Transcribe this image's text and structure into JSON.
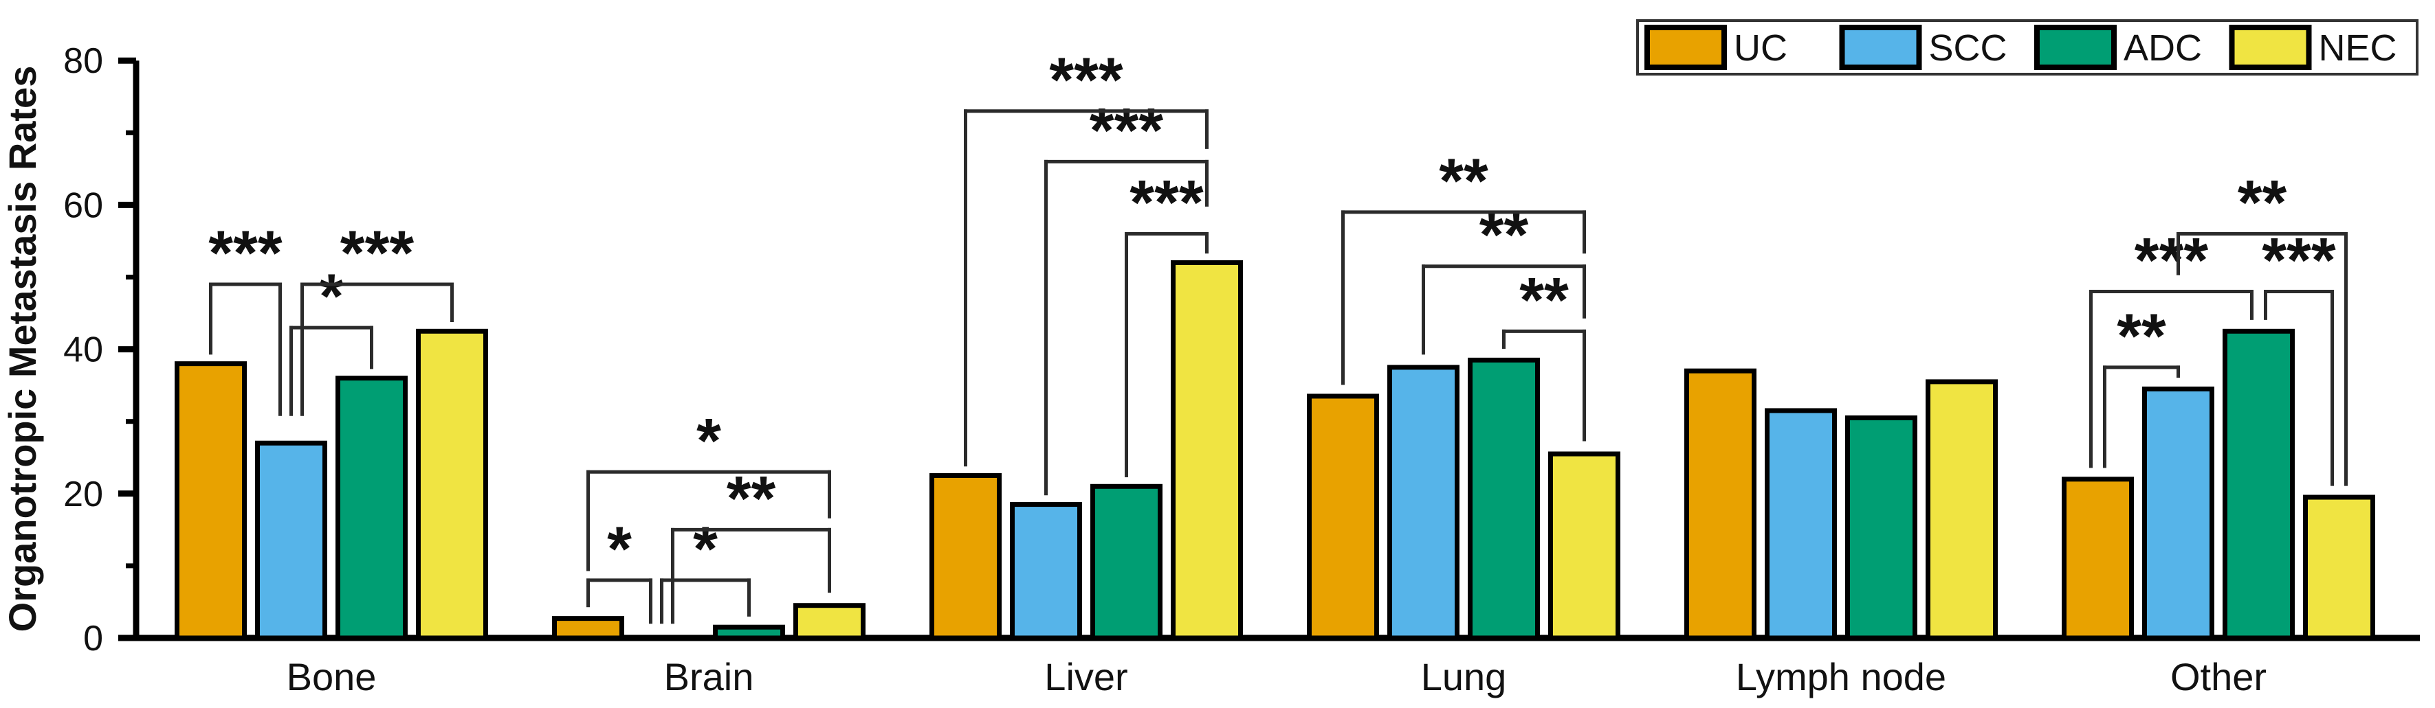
{
  "chart_data": {
    "type": "bar",
    "title": "",
    "xlabel": "",
    "ylabel": "Organotropic Metastasis Rates",
    "ylim": [
      0,
      80
    ],
    "yticks_major": [
      0,
      20,
      40,
      60,
      80
    ],
    "yticks_minor": [
      10,
      30,
      50,
      70
    ],
    "grid": false,
    "legend_position": "top-right",
    "categories": [
      "Bone",
      "Brain",
      "Liver",
      "Lung",
      "Lymph node",
      "Other"
    ],
    "series": [
      {
        "name": "UC",
        "color": "#E8A200",
        "values": [
          38,
          2.7,
          22.5,
          33.5,
          37,
          22
        ]
      },
      {
        "name": "SCC",
        "color": "#56B4E9",
        "values": [
          27,
          0,
          18.5,
          37.5,
          31.5,
          34.5
        ]
      },
      {
        "name": "ADC",
        "color": "#009E73",
        "values": [
          36,
          1.5,
          21,
          38.5,
          30.5,
          42.5
        ]
      },
      {
        "name": "NEC",
        "color": "#F0E442",
        "values": [
          42.5,
          4.5,
          52,
          25.5,
          35.5,
          19.5
        ]
      }
    ],
    "significance_brackets": [
      {
        "category": "Bone",
        "a": "UC",
        "b": "SCC",
        "stars": "***",
        "top": 49,
        "a_end": 39.5,
        "b_end": 31,
        "a_dx": 0,
        "b_dx": -16
      },
      {
        "category": "Bone",
        "a": "SCC",
        "b": "ADC",
        "stars": "*",
        "top": 43,
        "a_end": 31,
        "b_end": 37.5,
        "a_dx": 0,
        "b_dx": 0
      },
      {
        "category": "Bone",
        "a": "SCC",
        "b": "NEC",
        "stars": "***",
        "top": 49,
        "a_end": 31,
        "b_end": 44,
        "a_dx": 16,
        "b_dx": 0
      },
      {
        "category": "Brain",
        "a": "UC",
        "b": "SCC",
        "stars": "*",
        "top": 8,
        "a_end": 4.5,
        "b_end": 2.2,
        "a_dx": 0,
        "b_dx": -26
      },
      {
        "category": "Brain",
        "a": "SCC",
        "b": "ADC",
        "stars": "*",
        "top": 8,
        "a_end": 2.2,
        "b_end": 3.2,
        "a_dx": -10,
        "b_dx": 0
      },
      {
        "category": "Brain",
        "a": "SCC",
        "b": "NEC",
        "stars": "**",
        "top": 15,
        "a_end": 2.2,
        "b_end": 6.5,
        "a_dx": 6,
        "b_dx": 0
      },
      {
        "category": "Brain",
        "a": "UC",
        "b": "NEC",
        "stars": "*",
        "top": 23,
        "a_end": 9.5,
        "b_end": 16.8,
        "a_dx": 0,
        "b_dx": 0
      },
      {
        "category": "Liver",
        "a": "ADC",
        "b": "NEC",
        "stars": "***",
        "top": 56,
        "a_end": 22.5,
        "b_end": 53.5,
        "a_dx": 0,
        "b_dx": 0
      },
      {
        "category": "Liver",
        "a": "SCC",
        "b": "NEC",
        "stars": "***",
        "top": 66,
        "a_end": 20,
        "b_end": 60,
        "a_dx": 0,
        "b_dx": 0
      },
      {
        "category": "Liver",
        "a": "UC",
        "b": "NEC",
        "stars": "***",
        "top": 73,
        "a_end": 24,
        "b_end": 68,
        "a_dx": 0,
        "b_dx": 0
      },
      {
        "category": "Lung",
        "a": "ADC",
        "b": "NEC",
        "stars": "**",
        "top": 42.5,
        "a_end": 40.3,
        "b_end": 27.5,
        "a_dx": 0,
        "b_dx": 0
      },
      {
        "category": "Lung",
        "a": "SCC",
        "b": "NEC",
        "stars": "**",
        "top": 51.5,
        "a_end": 39.5,
        "b_end": 44.5,
        "a_dx": 0,
        "b_dx": 0
      },
      {
        "category": "Lung",
        "a": "UC",
        "b": "NEC",
        "stars": "**",
        "top": 59,
        "a_end": 35.3,
        "b_end": 53.5,
        "a_dx": 0,
        "b_dx": 0
      },
      {
        "category": "Other",
        "a": "UC",
        "b": "SCC",
        "stars": "**",
        "top": 37.5,
        "a_end": 23.8,
        "b_end": 36.3,
        "a_dx": 10,
        "b_dx": 0
      },
      {
        "category": "Other",
        "a": "UC",
        "b": "ADC",
        "stars": "***",
        "top": 48,
        "a_end": 23.8,
        "b_end": 44.3,
        "a_dx": -10,
        "b_dx": -10
      },
      {
        "category": "Other",
        "a": "ADC",
        "b": "NEC",
        "stars": "***",
        "top": 48,
        "a_end": 44.3,
        "b_end": 21.3,
        "a_dx": 10,
        "b_dx": -10
      },
      {
        "category": "Other",
        "a": "SCC",
        "b": "NEC",
        "stars": "**",
        "top": 56,
        "a_end": 50.5,
        "b_end": 21.3,
        "a_dx": 0,
        "b_dx": 10
      }
    ]
  },
  "style_colors": {
    "background": "#ffffff",
    "axis": "#000000",
    "bar_outline": "#000000",
    "bracket": "#2b2b2b",
    "text": "#111111",
    "legend_border": "#333333"
  }
}
